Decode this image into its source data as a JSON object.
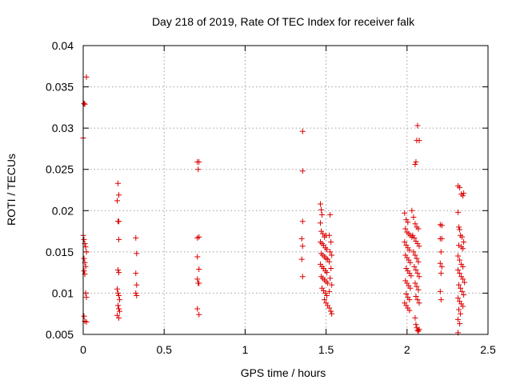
{
  "chart_data": {
    "type": "scatter",
    "title": "Day 218 of 2019, Rate Of TEC Index for receiver falk",
    "xlabel": "GPS time / hours",
    "ylabel": "ROTI / TECUs",
    "xlim": [
      0,
      2.5
    ],
    "ylim": [
      0.005,
      0.04
    ],
    "xticks": [
      0,
      0.5,
      1,
      1.5,
      2,
      2.5
    ],
    "xtick_labels": [
      "0",
      "0.5",
      "1",
      "1.5",
      "2",
      "2.5"
    ],
    "yticks": [
      0.005,
      0.01,
      0.015,
      0.02,
      0.025,
      0.03,
      0.035,
      0.04
    ],
    "ytick_labels": [
      "0.005",
      "0.01",
      "0.015",
      "0.02",
      "0.025",
      "0.03",
      "0.035",
      "0.04"
    ],
    "grid": true,
    "marker": "plus",
    "marker_color": "#dd0000",
    "series": [
      {
        "points": [
          [
            0.0,
            0.0288
          ],
          [
            0.005,
            0.033
          ],
          [
            0.01,
            0.0329
          ],
          [
            0.02,
            0.0362
          ],
          [
            0.0,
            0.017
          ],
          [
            0.005,
            0.0165
          ],
          [
            0.01,
            0.016
          ],
          [
            0.015,
            0.0156
          ],
          [
            0.02,
            0.015
          ],
          [
            0.005,
            0.0142
          ],
          [
            0.01,
            0.0137
          ],
          [
            0.015,
            0.0132
          ],
          [
            0.005,
            0.0127
          ],
          [
            0.01,
            0.0123
          ],
          [
            0.015,
            0.01
          ],
          [
            0.02,
            0.0095
          ],
          [
            0.005,
            0.0072
          ],
          [
            0.01,
            0.0066
          ],
          [
            0.02,
            0.0065
          ],
          [
            0.215,
            0.0233
          ],
          [
            0.22,
            0.0219
          ],
          [
            0.21,
            0.0212
          ],
          [
            0.215,
            0.0187
          ],
          [
            0.22,
            0.0187
          ],
          [
            0.22,
            0.0165
          ],
          [
            0.215,
            0.0128
          ],
          [
            0.22,
            0.0125
          ],
          [
            0.21,
            0.0105
          ],
          [
            0.215,
            0.01
          ],
          [
            0.22,
            0.0097
          ],
          [
            0.225,
            0.0092
          ],
          [
            0.215,
            0.0085
          ],
          [
            0.22,
            0.0081
          ],
          [
            0.225,
            0.0078
          ],
          [
            0.21,
            0.0073
          ],
          [
            0.22,
            0.007
          ],
          [
            0.325,
            0.0167
          ],
          [
            0.33,
            0.0148
          ],
          [
            0.325,
            0.0124
          ],
          [
            0.33,
            0.011
          ],
          [
            0.325,
            0.01
          ],
          [
            0.33,
            0.0097
          ],
          [
            0.705,
            0.0259
          ],
          [
            0.715,
            0.0259
          ],
          [
            0.71,
            0.025
          ],
          [
            0.705,
            0.0167
          ],
          [
            0.715,
            0.0168
          ],
          [
            0.705,
            0.0144
          ],
          [
            0.715,
            0.0129
          ],
          [
            0.705,
            0.0117
          ],
          [
            0.71,
            0.0112
          ],
          [
            0.715,
            0.0112
          ],
          [
            0.705,
            0.0081
          ],
          [
            0.715,
            0.0074
          ],
          [
            1.355,
            0.0296
          ],
          [
            1.355,
            0.0248
          ],
          [
            1.355,
            0.0187
          ],
          [
            1.35,
            0.0166
          ],
          [
            1.355,
            0.0157
          ],
          [
            1.35,
            0.0141
          ],
          [
            1.355,
            0.012
          ],
          [
            1.465,
            0.0208
          ],
          [
            1.47,
            0.0201
          ],
          [
            1.475,
            0.0195
          ],
          [
            1.465,
            0.0185
          ],
          [
            1.47,
            0.0175
          ],
          [
            1.48,
            0.0172
          ],
          [
            1.49,
            0.0168
          ],
          [
            1.5,
            0.017
          ],
          [
            1.465,
            0.0162
          ],
          [
            1.475,
            0.016
          ],
          [
            1.485,
            0.0158
          ],
          [
            1.495,
            0.0155
          ],
          [
            1.505,
            0.0153
          ],
          [
            1.47,
            0.0148
          ],
          [
            1.48,
            0.0146
          ],
          [
            1.49,
            0.0144
          ],
          [
            1.5,
            0.0142
          ],
          [
            1.51,
            0.0141
          ],
          [
            1.465,
            0.0135
          ],
          [
            1.475,
            0.0132
          ],
          [
            1.485,
            0.013
          ],
          [
            1.495,
            0.0127
          ],
          [
            1.505,
            0.0125
          ],
          [
            1.47,
            0.012
          ],
          [
            1.48,
            0.0118
          ],
          [
            1.49,
            0.0116
          ],
          [
            1.5,
            0.0114
          ],
          [
            1.51,
            0.0112
          ],
          [
            1.475,
            0.0106
          ],
          [
            1.485,
            0.0103
          ],
          [
            1.495,
            0.01
          ],
          [
            1.505,
            0.0097
          ],
          [
            1.49,
            0.0092
          ],
          [
            1.5,
            0.0088
          ],
          [
            1.51,
            0.0085
          ],
          [
            1.52,
            0.0082
          ],
          [
            1.53,
            0.0078
          ],
          [
            1.535,
            0.0075
          ],
          [
            1.525,
            0.0195
          ],
          [
            1.52,
            0.017
          ],
          [
            1.53,
            0.0162
          ],
          [
            1.525,
            0.015
          ],
          [
            1.535,
            0.0146
          ],
          [
            1.52,
            0.0138
          ],
          [
            1.53,
            0.013
          ],
          [
            1.525,
            0.0118
          ],
          [
            1.535,
            0.011
          ],
          [
            1.52,
            0.0102
          ],
          [
            1.985,
            0.0197
          ],
          [
            1.995,
            0.0189
          ],
          [
            2.005,
            0.0186
          ],
          [
            1.99,
            0.0178
          ],
          [
            2.0,
            0.0174
          ],
          [
            2.01,
            0.0172
          ],
          [
            2.02,
            0.017
          ],
          [
            2.03,
            0.0168
          ],
          [
            1.985,
            0.0162
          ],
          [
            1.995,
            0.0158
          ],
          [
            2.005,
            0.0155
          ],
          [
            2.015,
            0.0152
          ],
          [
            1.99,
            0.0146
          ],
          [
            2.0,
            0.0143
          ],
          [
            2.01,
            0.014
          ],
          [
            2.02,
            0.0137
          ],
          [
            1.995,
            0.013
          ],
          [
            2.005,
            0.0127
          ],
          [
            2.015,
            0.0124
          ],
          [
            2.025,
            0.0121
          ],
          [
            1.99,
            0.0115
          ],
          [
            2.0,
            0.0112
          ],
          [
            2.01,
            0.0109
          ],
          [
            2.02,
            0.0106
          ],
          [
            1.995,
            0.0099
          ],
          [
            2.005,
            0.0095
          ],
          [
            2.015,
            0.0092
          ],
          [
            1.985,
            0.0088
          ],
          [
            1.995,
            0.0085
          ],
          [
            2.005,
            0.0082
          ],
          [
            2.015,
            0.0079
          ],
          [
            2.03,
            0.02
          ],
          [
            2.04,
            0.0192
          ],
          [
            2.05,
            0.0184
          ],
          [
            2.06,
            0.018
          ],
          [
            2.07,
            0.0178
          ],
          [
            2.035,
            0.017
          ],
          [
            2.045,
            0.0167
          ],
          [
            2.055,
            0.0163
          ],
          [
            2.065,
            0.016
          ],
          [
            2.075,
            0.0157
          ],
          [
            2.04,
            0.015
          ],
          [
            2.05,
            0.0146
          ],
          [
            2.06,
            0.0142
          ],
          [
            2.07,
            0.0138
          ],
          [
            2.045,
            0.0132
          ],
          [
            2.055,
            0.0128
          ],
          [
            2.065,
            0.0124
          ],
          [
            2.075,
            0.012
          ],
          [
            2.05,
            0.0112
          ],
          [
            2.06,
            0.0108
          ],
          [
            2.07,
            0.0104
          ],
          [
            2.055,
            0.0096
          ],
          [
            2.065,
            0.0092
          ],
          [
            2.075,
            0.0088
          ],
          [
            2.065,
            0.0303
          ],
          [
            2.06,
            0.0285
          ],
          [
            2.075,
            0.0285
          ],
          [
            2.055,
            0.0259
          ],
          [
            2.05,
            0.0256
          ],
          [
            2.05,
            0.007
          ],
          [
            2.055,
            0.0062
          ],
          [
            2.06,
            0.0058
          ],
          [
            2.065,
            0.0055
          ],
          [
            2.07,
            0.0054
          ],
          [
            2.075,
            0.0056
          ],
          [
            2.205,
            0.0183
          ],
          [
            2.215,
            0.0182
          ],
          [
            2.205,
            0.0166
          ],
          [
            2.215,
            0.0166
          ],
          [
            2.21,
            0.015
          ],
          [
            2.205,
            0.0136
          ],
          [
            2.215,
            0.0132
          ],
          [
            2.21,
            0.0124
          ],
          [
            2.205,
            0.0102
          ],
          [
            2.21,
            0.0092
          ],
          [
            2.315,
            0.023
          ],
          [
            2.325,
            0.0228
          ],
          [
            2.335,
            0.022
          ],
          [
            2.345,
            0.0218
          ],
          [
            2.35,
            0.0221
          ],
          [
            2.315,
            0.0198
          ],
          [
            2.32,
            0.018
          ],
          [
            2.325,
            0.0177
          ],
          [
            2.33,
            0.017
          ],
          [
            2.34,
            0.0168
          ],
          [
            2.35,
            0.0162
          ],
          [
            2.32,
            0.0158
          ],
          [
            2.335,
            0.0156
          ],
          [
            2.345,
            0.0154
          ],
          [
            2.315,
            0.0145
          ],
          [
            2.325,
            0.014
          ],
          [
            2.335,
            0.0135
          ],
          [
            2.345,
            0.0132
          ],
          [
            2.315,
            0.0128
          ],
          [
            2.325,
            0.0124
          ],
          [
            2.335,
            0.012
          ],
          [
            2.345,
            0.0117
          ],
          [
            2.355,
            0.0113
          ],
          [
            2.32,
            0.011
          ],
          [
            2.33,
            0.0106
          ],
          [
            2.34,
            0.0102
          ],
          [
            2.35,
            0.0098
          ],
          [
            2.315,
            0.0094
          ],
          [
            2.325,
            0.009
          ],
          [
            2.335,
            0.0087
          ],
          [
            2.345,
            0.0084
          ],
          [
            2.32,
            0.008
          ],
          [
            2.33,
            0.0075
          ],
          [
            2.315,
            0.0068
          ],
          [
            2.325,
            0.0063
          ],
          [
            2.315,
            0.0052
          ]
        ]
      }
    ]
  }
}
